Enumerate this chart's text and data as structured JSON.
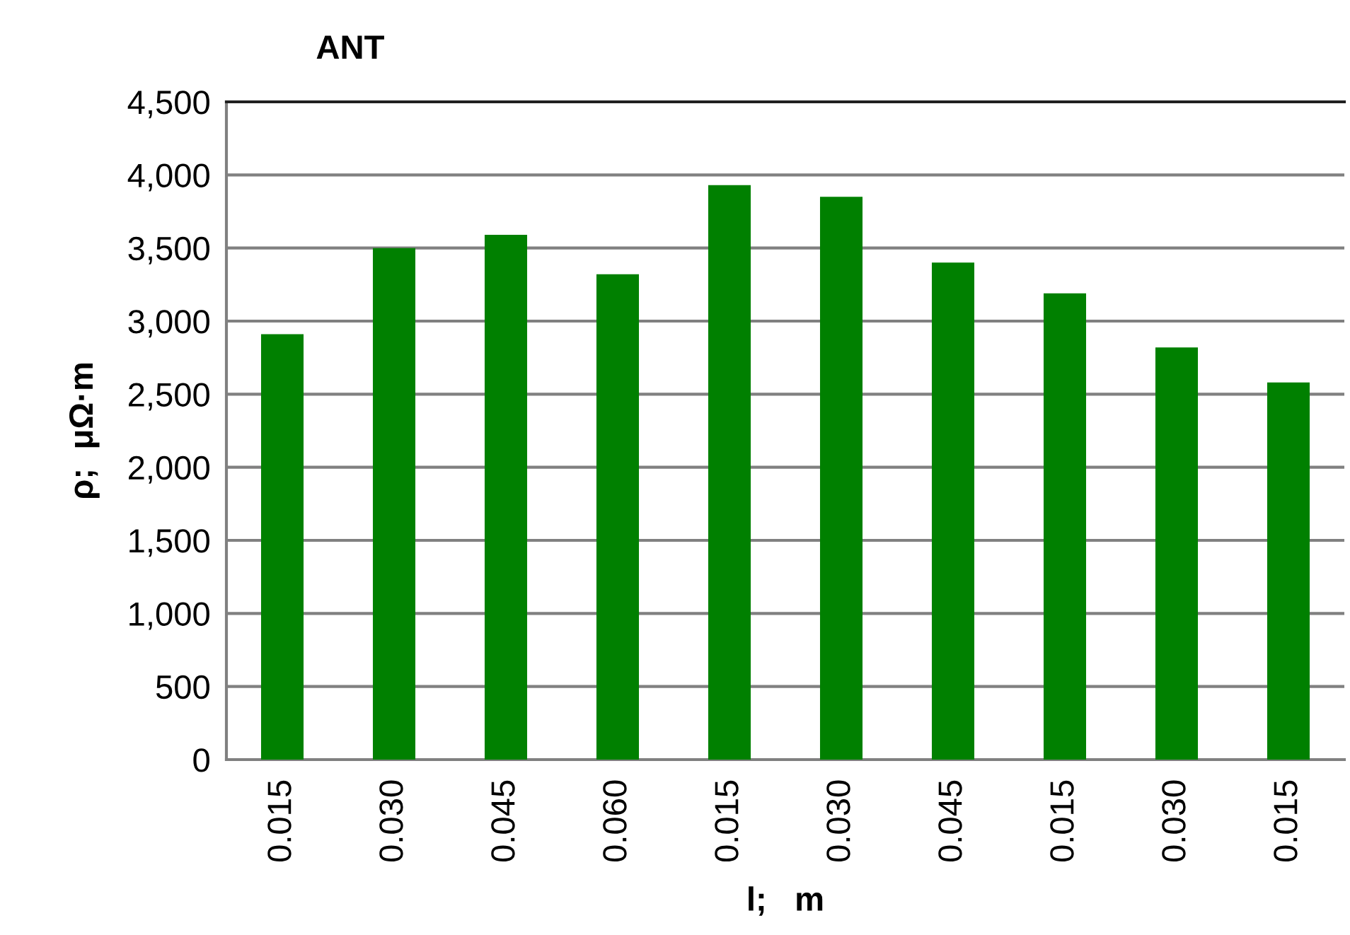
{
  "chart_data": {
    "type": "bar",
    "title": "ANT",
    "xlabel": "l;   m",
    "ylabel": "ρ;  μΩ·m",
    "categories": [
      "0.015",
      "0.030",
      "0.045",
      "0.060",
      "0.015",
      "0.030",
      "0.045",
      "0.015",
      "0.030",
      "0.015"
    ],
    "values": [
      2910,
      3500,
      3590,
      3320,
      3930,
      3850,
      3400,
      3190,
      2820,
      2580
    ],
    "color": "#008000",
    "ylim": [
      0,
      4500
    ],
    "yticks": [
      0,
      {
        "value": 500,
        "label": "500"
      },
      {
        "value": 1000,
        "label": "1,000"
      },
      {
        "value": 1500,
        "label": "1,500"
      },
      {
        "value": 2000,
        "label": "2,000"
      },
      {
        "value": 2500,
        "label": "2,500"
      },
      {
        "value": 3000,
        "label": "3,000"
      },
      {
        "value": 3500,
        "label": "3,500"
      },
      {
        "value": 4000,
        "label": "4,000"
      },
      {
        "value": 4500,
        "label": "4,500"
      }
    ],
    "grid": "y"
  }
}
